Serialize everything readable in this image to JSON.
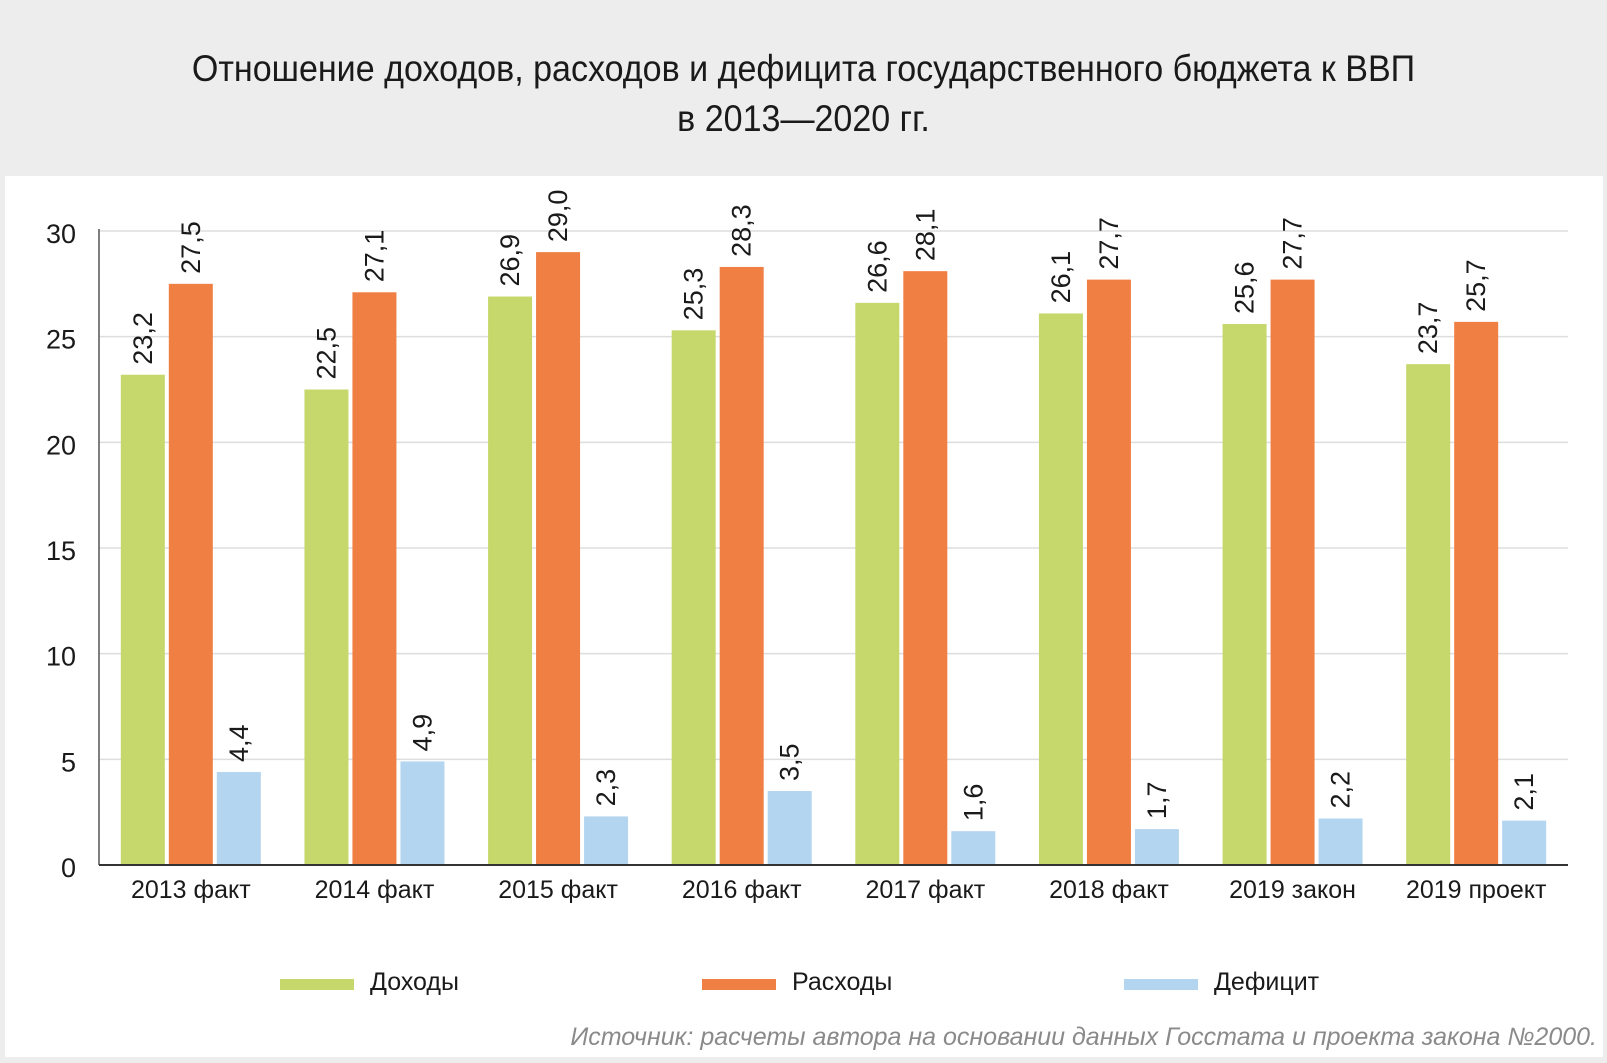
{
  "chart_data": {
    "type": "bar",
    "title": [
      "Отношение доходов, расходов и дефицита государственного бюджета к ВВП",
      "в 2013—2020 гг."
    ],
    "xlabel": "",
    "ylabel": "",
    "ylim": [
      0,
      30
    ],
    "yticks": [
      0,
      5,
      10,
      15,
      20,
      25,
      30
    ],
    "ytick_labels": [
      "0",
      "5",
      "10",
      "15",
      "20",
      "25",
      "30"
    ],
    "grid": true,
    "legend_position": "bottom",
    "categories": [
      "2013 факт",
      "2014 факт",
      "2015 факт",
      "2016 факт",
      "2017 факт",
      "2018 факт",
      "2019 закон",
      "2019 проект"
    ],
    "series": [
      {
        "name": "Доходы",
        "color": "#c6d86c",
        "values": [
          23.2,
          22.5,
          26.9,
          25.3,
          26.6,
          26.1,
          25.6,
          23.7
        ],
        "labels": [
          "23,2",
          "22,5",
          "26,9",
          "25,3",
          "26,6",
          "26,1",
          "25,6",
          "23,7"
        ]
      },
      {
        "name": "Расходы",
        "color": "#f07f43",
        "values": [
          27.5,
          27.1,
          29.0,
          28.3,
          28.1,
          27.7,
          27.7,
          25.7
        ],
        "labels": [
          "27,5",
          "27,1",
          "29,0",
          "28,3",
          "28,1",
          "27,7",
          "27,7",
          "25,7"
        ]
      },
      {
        "name": "Дефицит",
        "color": "#b3d5f0",
        "values": [
          4.4,
          4.9,
          2.3,
          3.5,
          1.6,
          1.7,
          2.2,
          2.1
        ],
        "labels": [
          "4,4",
          "4,9",
          "2,3",
          "3,5",
          "1,6",
          "1,7",
          "2,2",
          "2,1"
        ]
      }
    ]
  },
  "source_note": "Источник: расчеты автора на основании данных Госстата и проекта закона №2000."
}
